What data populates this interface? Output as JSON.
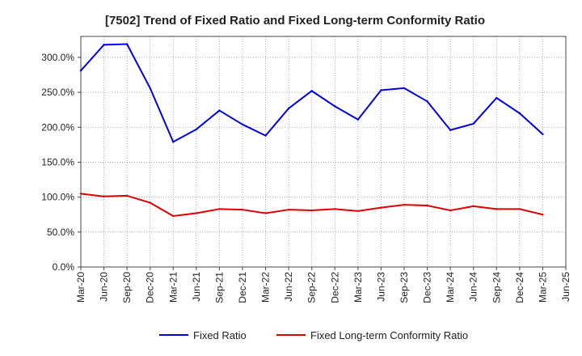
{
  "chart_data": {
    "type": "line",
    "title": "[7502]  Trend of Fixed Ratio and Fixed Long-term Conformity Ratio",
    "xlabel": "",
    "ylabel": "",
    "x": [
      "Mar-20",
      "Jun-20",
      "Sep-20",
      "Dec-20",
      "Mar-21",
      "Jun-21",
      "Sep-21",
      "Dec-21",
      "Mar-22",
      "Jun-22",
      "Sep-22",
      "Dec-22",
      "Mar-23",
      "Jun-23",
      "Sep-23",
      "Dec-23",
      "Mar-24",
      "Jun-24",
      "Sep-24",
      "Dec-24",
      "Mar-25",
      "Jun-25"
    ],
    "ylim": [
      0,
      330
    ],
    "yticks": [
      0,
      50,
      100,
      150,
      200,
      250,
      300
    ],
    "ytick_labels": [
      "0.0%",
      "50.0%",
      "100.0%",
      "150.0%",
      "200.0%",
      "250.0%",
      "300.0%"
    ],
    "grid": true,
    "legend_position": "bottom",
    "series": [
      {
        "name": "Fixed Ratio",
        "color": "#0000dd",
        "values": [
          281,
          318,
          319,
          256,
          179,
          197,
          224,
          204,
          188,
          227,
          252,
          230,
          211,
          253,
          256,
          237,
          196,
          205,
          242,
          220,
          190,
          null
        ]
      },
      {
        "name": "Fixed Long-term Conformity Ratio",
        "color": "#dd0000",
        "values": [
          105,
          101,
          102,
          92,
          73,
          77,
          83,
          82,
          77,
          82,
          81,
          83,
          80,
          85,
          89,
          88,
          81,
          87,
          83,
          83,
          75,
          null
        ]
      }
    ]
  }
}
